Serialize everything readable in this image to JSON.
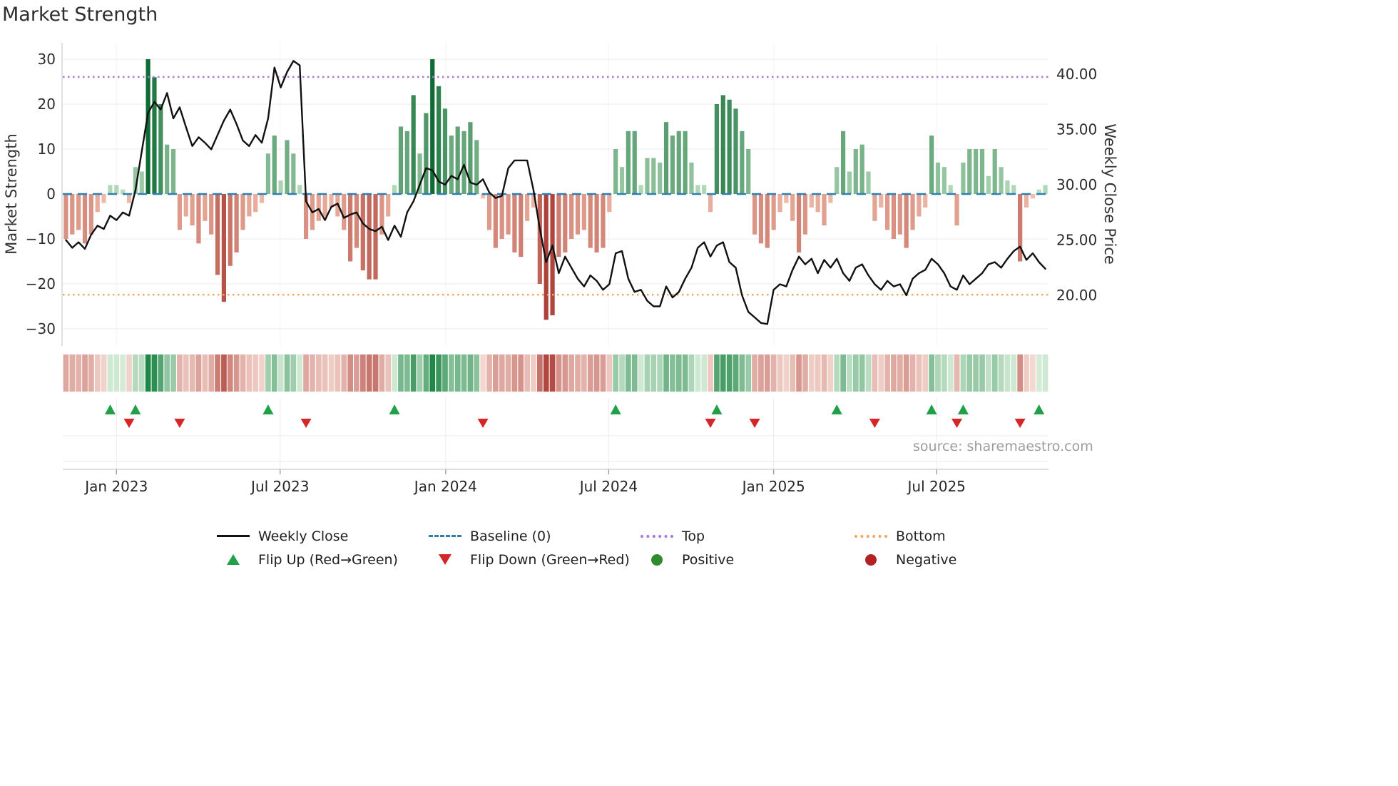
{
  "title": "Market Strength",
  "source_text": "source: sharemaestro.com",
  "left_axis": {
    "label": "Market Strength",
    "ticks": [
      "30",
      "20",
      "10",
      "0",
      "−10",
      "−20",
      "−30"
    ],
    "tick_values": [
      30,
      20,
      10,
      0,
      -10,
      -20,
      -30
    ]
  },
  "right_axis": {
    "label": "Weekly Close Price",
    "ticks": [
      "40.00",
      "35.00",
      "30.00",
      "25.00",
      "20.00"
    ],
    "tick_values": [
      40,
      35,
      30,
      25,
      20
    ]
  },
  "x_axis": {
    "tick_labels": [
      "Jan 2023",
      "Jul 2023",
      "Jan 2024",
      "Jul 2024",
      "Jan 2025",
      "Jul 2025"
    ],
    "tick_weeks": [
      8.0,
      33.9,
      60.1,
      85.9,
      112.0,
      137.8
    ]
  },
  "reference_lines": {
    "baseline": {
      "label": "Baseline (0)",
      "value_left_axis": 0,
      "style": "dashed"
    },
    "top": {
      "label": "Top",
      "value_right_axis": 39.75,
      "style": "dotted"
    },
    "bottom": {
      "label": "Bottom",
      "value_right_axis": 20.05,
      "style": "dotted"
    }
  },
  "colors": {
    "weekly_close": "#111111",
    "baseline": "#2e7eb3",
    "top": "#a678d8",
    "bottom": "#f4a55e",
    "flip_up": "#22a049",
    "flip_down": "#d62728",
    "positive": "#2e8b2e",
    "negative": "#b22222",
    "bar_pos_light": "#bfe2c3",
    "bar_pos_dark": "#0d6b33",
    "bar_neg_light": "#f5c4b1",
    "bar_neg_dark": "#a83a32",
    "heat_pos_light": "#dcefdd",
    "heat_pos_dark": "#1f8747",
    "heat_neg_light": "#f6ddd5",
    "heat_neg_dark": "#b2473f"
  },
  "legend": {
    "rows": [
      [
        {
          "label": "Weekly Close",
          "swatch": "black-line"
        },
        {
          "label": "Baseline (0)",
          "swatch": "blue-dashed-line"
        },
        {
          "label": "Top",
          "swatch": "purple-dotted-line"
        },
        {
          "label": "Bottom",
          "swatch": "orange-dotted-line"
        }
      ],
      [
        {
          "label": "Flip Up (Red→Green)",
          "swatch": "green-up-triangle"
        },
        {
          "label": "Flip Down (Green→Red)",
          "swatch": "red-down-triangle"
        },
        {
          "label": "Positive",
          "swatch": "green-circle"
        },
        {
          "label": "Negative",
          "swatch": "dark-red-circle"
        }
      ]
    ]
  },
  "chart_data": [
    {
      "type": "bar",
      "name": "Market Strength",
      "axis": "left",
      "baseline": 0,
      "ylim": [
        -33.5,
        33.5
      ],
      "values": [
        -10,
        -9,
        -8,
        -11,
        -9,
        -4,
        -2,
        2,
        2,
        1,
        -2,
        6,
        5,
        30,
        26,
        20,
        11,
        10,
        -8,
        -5,
        -7,
        -11,
        -6,
        -9,
        -18,
        -24,
        -16,
        -13,
        -8,
        -5,
        -4,
        -2,
        9,
        13,
        3,
        12,
        9,
        2,
        -10,
        -8,
        -6,
        -5,
        -3,
        -5,
        -8,
        -15,
        -12,
        -17,
        -19,
        -19,
        -9,
        -5,
        2,
        15,
        14,
        22,
        9,
        18,
        30,
        24,
        19,
        13,
        15,
        14,
        16,
        12,
        -1,
        -8,
        -12,
        -10,
        -9,
        -13,
        -14,
        -6,
        -3,
        -20,
        -28,
        -27,
        -14,
        -13,
        -10,
        -9,
        -8,
        -12,
        -13,
        -12,
        -4,
        10,
        6,
        14,
        14,
        2,
        8,
        8,
        7,
        16,
        13,
        14,
        14,
        7,
        2,
        2,
        -4,
        20,
        22,
        21,
        19,
        14,
        10,
        -9,
        -11,
        -12,
        -8,
        -4,
        -2,
        -6,
        -13,
        -9,
        -3,
        -4,
        -7,
        -2,
        6,
        14,
        5,
        10,
        11,
        5,
        -6,
        -3,
        -8,
        -10,
        -9,
        -12,
        -8,
        -5,
        -3,
        13,
        7,
        6,
        2,
        -7,
        7,
        10,
        10,
        10,
        4,
        10,
        6,
        3,
        2,
        -15,
        -3,
        -1,
        1,
        2
      ]
    },
    {
      "type": "line",
      "name": "Weekly Close",
      "axis": "right",
      "ylim": [
        16.5,
        42.5
      ],
      "values": [
        25.0,
        24.3,
        24.8,
        24.2,
        25.5,
        26.3,
        26.0,
        27.2,
        26.8,
        27.5,
        27.2,
        29.5,
        33.0,
        36.5,
        37.5,
        36.8,
        38.3,
        36.0,
        37.0,
        35.2,
        33.5,
        34.3,
        33.8,
        33.2,
        34.5,
        35.8,
        36.8,
        35.5,
        34.0,
        33.5,
        34.5,
        33.8,
        36.0,
        40.6,
        38.8,
        40.2,
        41.2,
        40.8,
        28.5,
        27.5,
        27.8,
        26.8,
        28.0,
        28.3,
        27.0,
        27.3,
        27.5,
        26.5,
        26.0,
        25.8,
        26.2,
        25.0,
        26.3,
        25.3,
        27.5,
        28.5,
        30.0,
        31.5,
        31.3,
        30.3,
        30.0,
        30.8,
        30.5,
        31.8,
        30.2,
        30.0,
        30.5,
        29.3,
        28.8,
        29.0,
        31.5,
        32.2,
        32.2,
        32.2,
        29.5,
        26.0,
        23.0,
        24.5,
        22.0,
        23.5,
        22.5,
        21.5,
        20.8,
        21.8,
        21.3,
        20.5,
        21.0,
        23.8,
        24.0,
        21.5,
        20.3,
        20.5,
        19.5,
        19.0,
        19.0,
        20.8,
        19.8,
        20.3,
        21.5,
        22.5,
        24.3,
        24.8,
        23.5,
        24.5,
        24.8,
        23.0,
        22.5,
        20.0,
        18.5,
        18.0,
        17.5,
        17.4,
        20.5,
        21.0,
        20.8,
        22.3,
        23.5,
        22.8,
        23.3,
        22.0,
        23.2,
        22.5,
        23.3,
        22.0,
        21.3,
        22.5,
        22.8,
        21.8,
        21.0,
        20.5,
        21.3,
        20.8,
        21.0,
        20.0,
        21.5,
        22.0,
        22.3,
        23.3,
        22.8,
        22.0,
        20.8,
        20.5,
        21.8,
        21.0,
        21.5,
        22.0,
        22.8,
        23.0,
        22.5,
        23.3,
        24.0,
        24.4,
        23.2,
        23.8,
        23.0,
        22.4
      ]
    },
    {
      "type": "heatmap",
      "name": "Weekly strength heatmap",
      "note": "one cell per week, color-coded from the Market Strength bar values (green positive, red negative, intensity by magnitude)"
    },
    {
      "type": "scatter",
      "name": "Flip Up (Red→Green)",
      "marker": "triangle-up",
      "weeks": [
        7,
        11,
        32,
        52,
        87,
        103,
        122,
        137,
        142,
        154
      ]
    },
    {
      "type": "scatter",
      "name": "Flip Down (Green→Red)",
      "marker": "triangle-down",
      "weeks": [
        10,
        18,
        38,
        66,
        102,
        109,
        128,
        141,
        151
      ]
    }
  ]
}
